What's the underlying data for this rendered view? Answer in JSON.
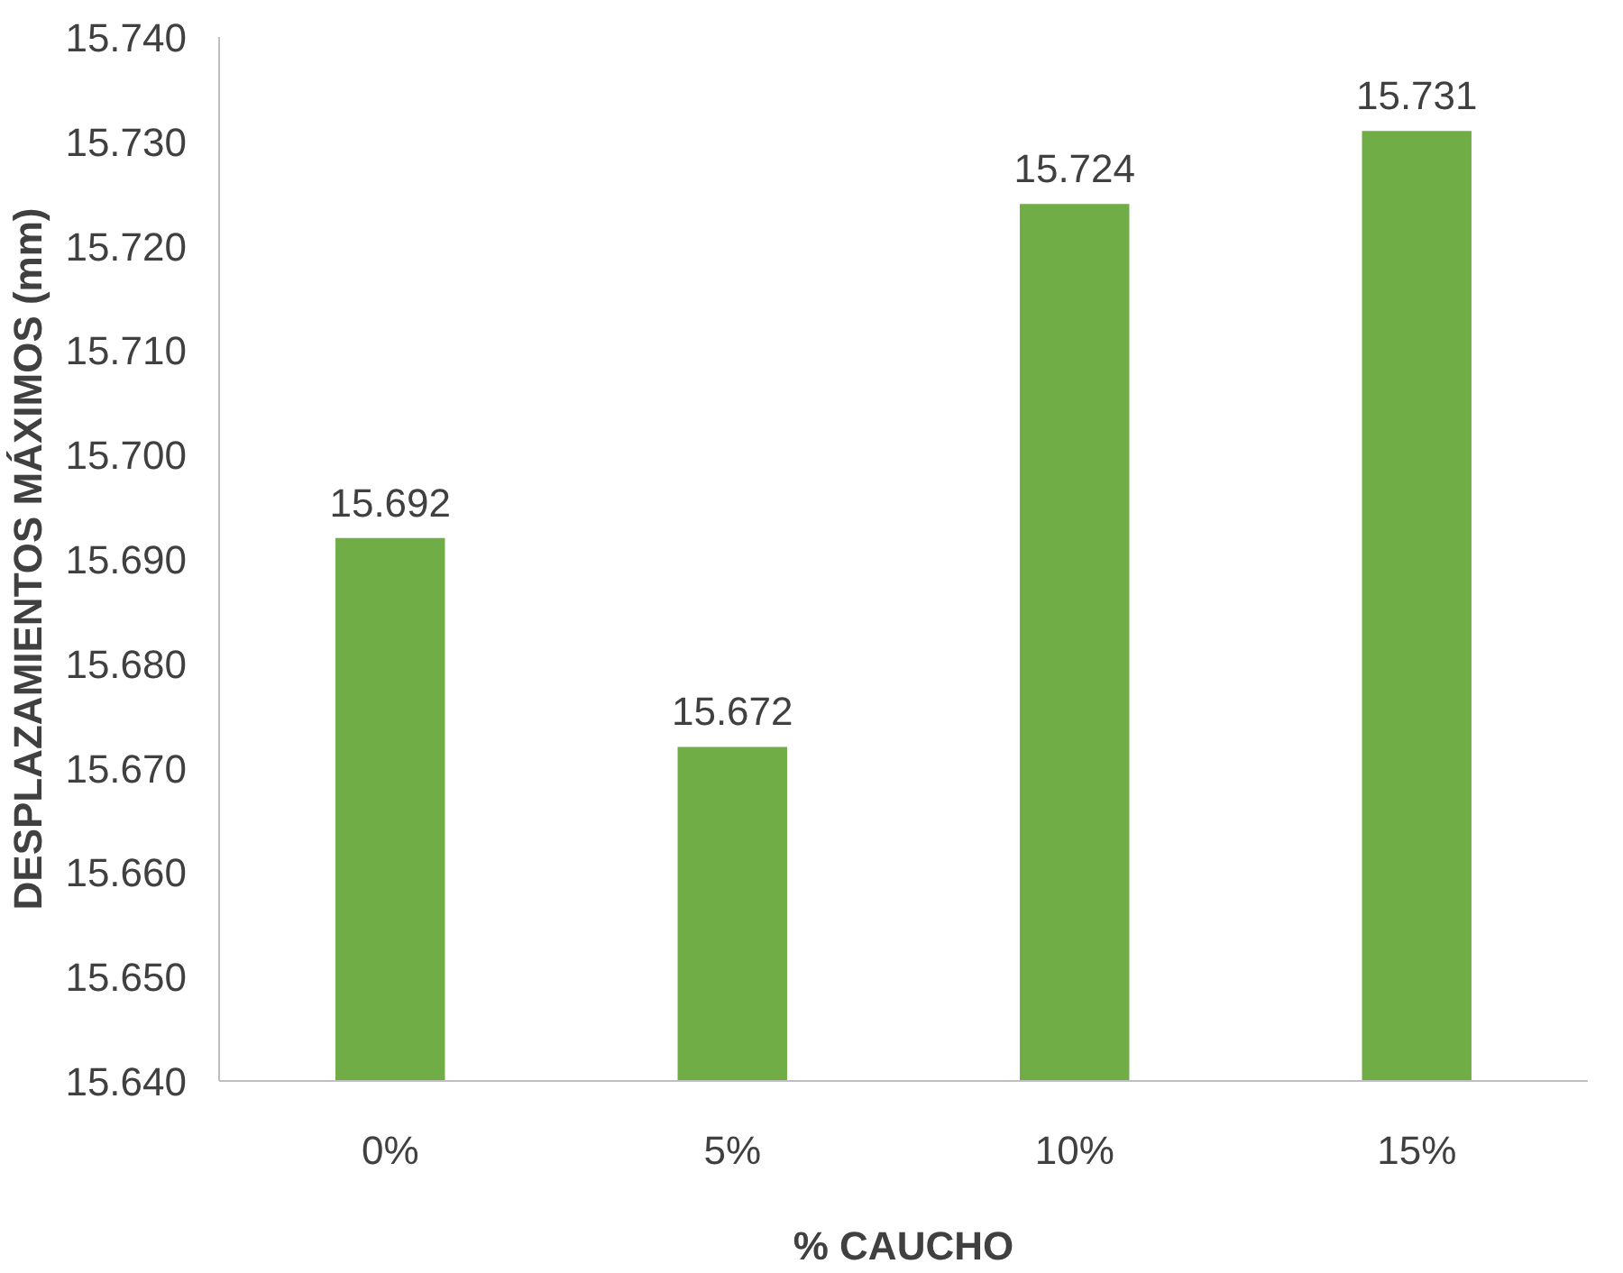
{
  "chart_data": {
    "type": "bar",
    "xlabel": "% CAUCHO",
    "ylabel": "DESPLAZAMIENTOS MÁXIMOS (mm)",
    "categories": [
      "0%",
      "5%",
      "10%",
      "15%"
    ],
    "values": [
      15.692,
      15.672,
      15.724,
      15.731
    ],
    "color": "#70ad47",
    "ylim": [
      15.64,
      15.74
    ],
    "yticks": [
      {
        "value": 15.64,
        "label": "15.640"
      },
      {
        "value": 15.65,
        "label": "15.650"
      },
      {
        "value": 15.66,
        "label": "15.660"
      },
      {
        "value": 15.67,
        "label": "15.670"
      },
      {
        "value": 15.68,
        "label": "15.680"
      },
      {
        "value": 15.69,
        "label": "15.690"
      },
      {
        "value": 15.7,
        "label": "15.700"
      },
      {
        "value": 15.71,
        "label": "15.710"
      },
      {
        "value": 15.72,
        "label": "15.720"
      },
      {
        "value": 15.73,
        "label": "15.730"
      },
      {
        "value": 15.74,
        "label": "15.740"
      }
    ],
    "data_labels": true,
    "grid": false
  }
}
